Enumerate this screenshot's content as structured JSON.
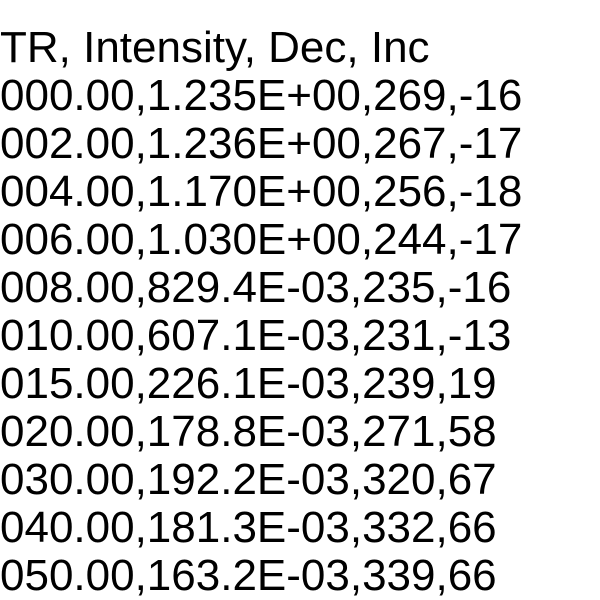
{
  "document": {
    "header": "TR, Intensity, Dec, Inc",
    "rows": [
      "000.00,1.235E+00,269,-16",
      "002.00,1.236E+00,267,-17",
      "004.00,1.170E+00,256,-18",
      "006.00,1.030E+00,244,-17",
      "008.00,829.4E-03,235,-16",
      "010.00,607.1E-03,231,-13",
      "015.00,226.1E-03,239,19",
      "020.00,178.8E-03,271,58",
      "030.00,192.2E-03,320,67",
      "040.00,181.3E-03,332,66",
      "050.00,163.2E-03,339,66"
    ]
  }
}
